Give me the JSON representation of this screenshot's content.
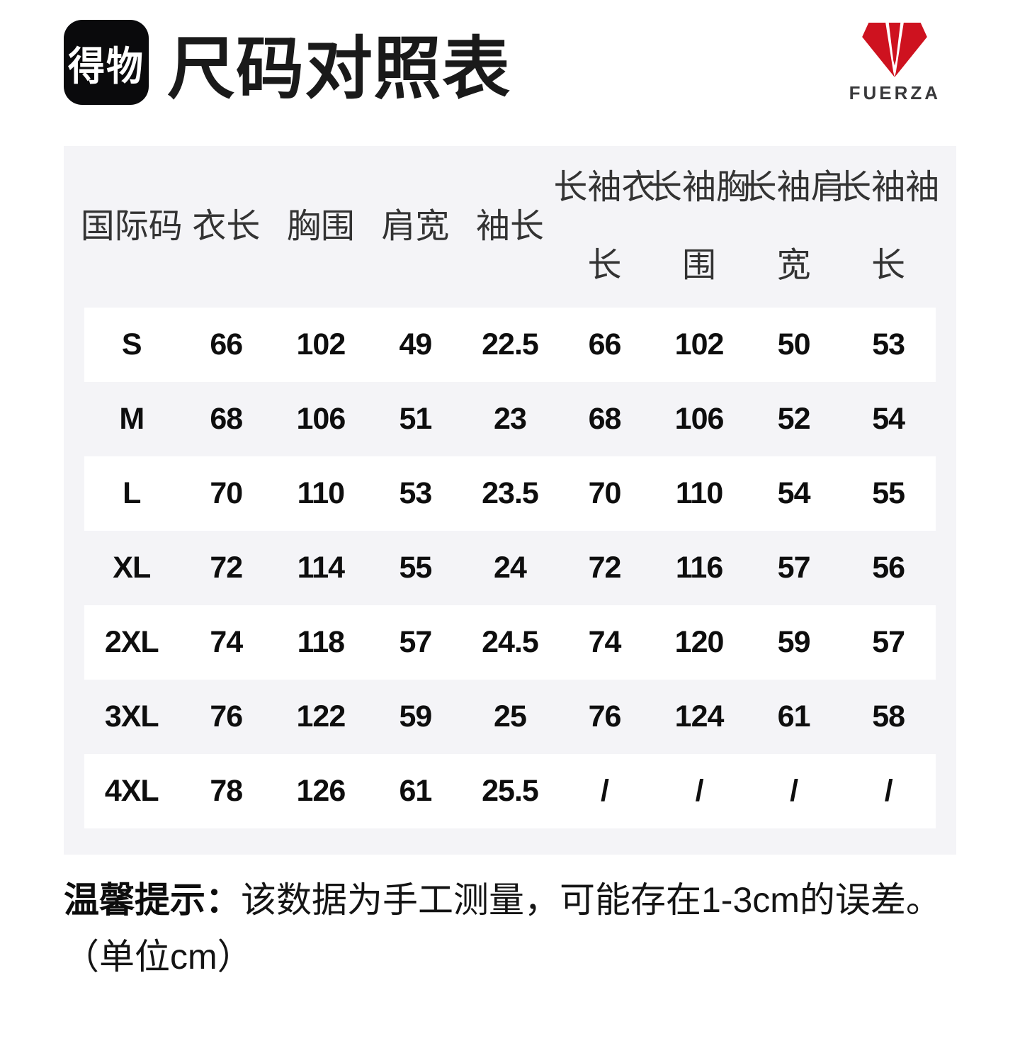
{
  "page": {
    "brand_badge": "得物",
    "title": "尺码对照表",
    "brand_logo_text": "FUERZA"
  },
  "colors": {
    "accent_red": "#ce121f",
    "panel_gray": "#f4f4f7",
    "badge_black": "#0a0a0c",
    "wordmark_gray": "#39393b"
  },
  "table": {
    "headers": [
      {
        "line1": "国际码",
        "line2": ""
      },
      {
        "line1": "衣长",
        "line2": ""
      },
      {
        "line1": "胸围",
        "line2": ""
      },
      {
        "line1": "肩宽",
        "line2": ""
      },
      {
        "line1": "袖长",
        "line2": ""
      },
      {
        "line1": "长袖衣",
        "line2": "长"
      },
      {
        "line1": "长袖胸",
        "line2": "围"
      },
      {
        "line1": "长袖肩",
        "line2": "宽"
      },
      {
        "line1": "长袖袖",
        "line2": "长"
      }
    ],
    "rows": [
      [
        "S",
        "66",
        "102",
        "49",
        "22.5",
        "66",
        "102",
        "50",
        "53"
      ],
      [
        "M",
        "68",
        "106",
        "51",
        "23",
        "68",
        "106",
        "52",
        "54"
      ],
      [
        "L",
        "70",
        "110",
        "53",
        "23.5",
        "70",
        "110",
        "54",
        "55"
      ],
      [
        "XL",
        "72",
        "114",
        "55",
        "24",
        "72",
        "116",
        "57",
        "56"
      ],
      [
        "2XL",
        "74",
        "118",
        "57",
        "24.5",
        "74",
        "120",
        "59",
        "57"
      ],
      [
        "3XL",
        "76",
        "122",
        "59",
        "25",
        "76",
        "124",
        "61",
        "58"
      ],
      [
        "4XL",
        "78",
        "126",
        "61",
        "25.5",
        "/",
        "/",
        "/",
        "/"
      ]
    ]
  },
  "footer": {
    "note_label": "温馨提示：",
    "note_text": "该数据为手工测量，可能存在1-3cm的误差。",
    "unit_text": "（单位cm）"
  }
}
